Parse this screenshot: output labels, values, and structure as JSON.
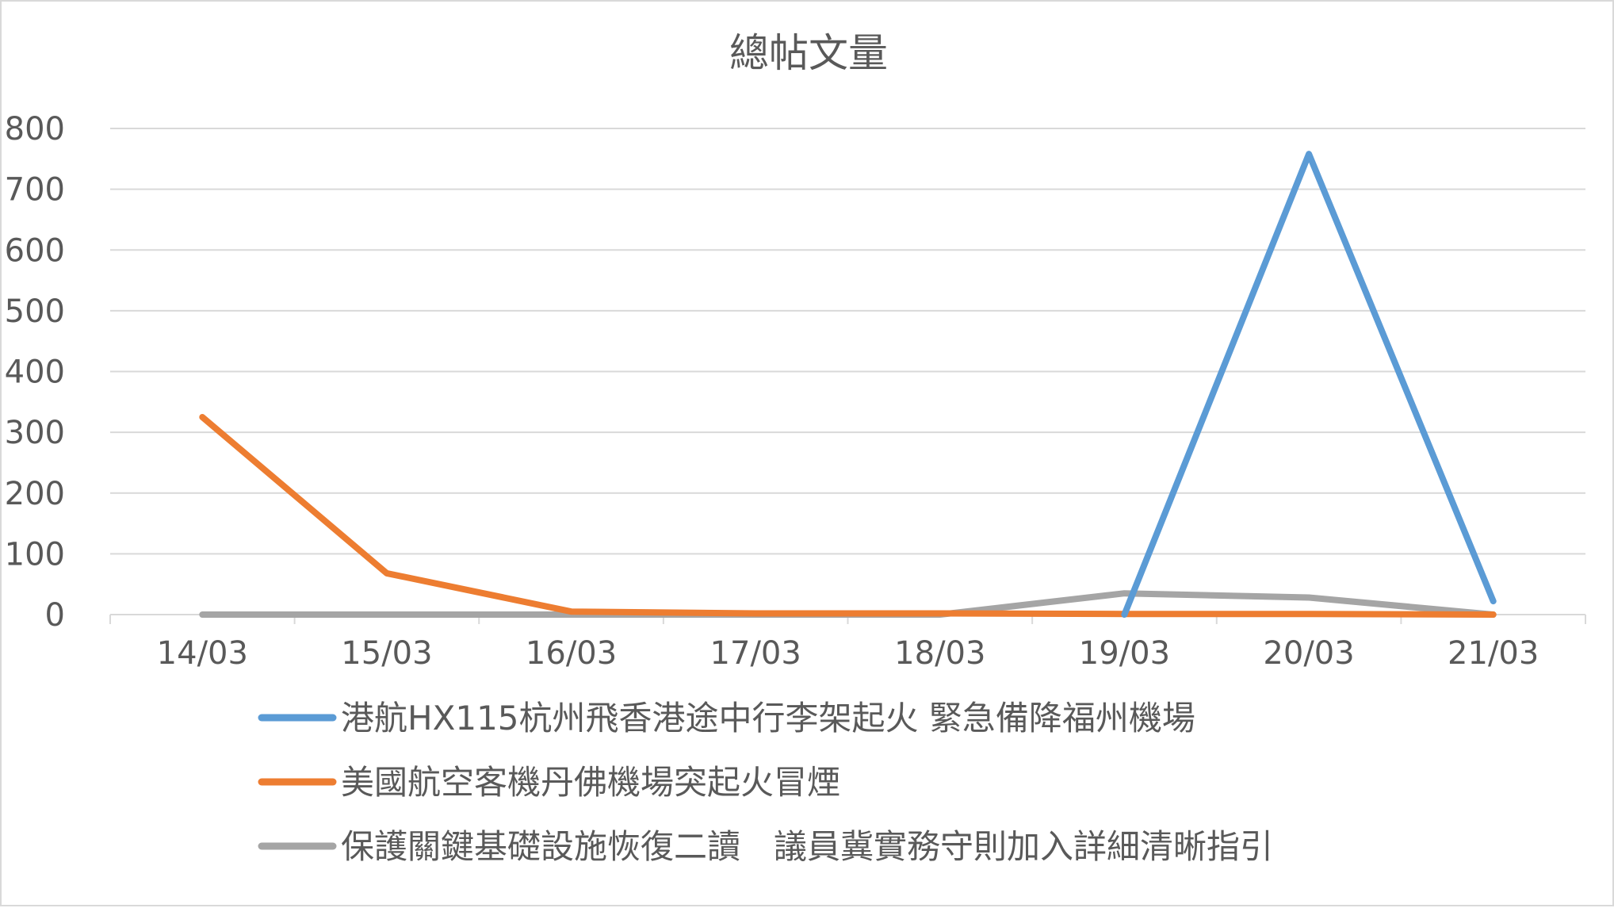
{
  "chart_data": {
    "type": "line",
    "title": "總帖文量",
    "xlabel": "",
    "ylabel": "",
    "categories": [
      "14/03",
      "15/03",
      "16/03",
      "17/03",
      "18/03",
      "19/03",
      "20/03",
      "21/03"
    ],
    "ylim": [
      0,
      800
    ],
    "yticks": [
      0,
      100,
      200,
      300,
      400,
      500,
      600,
      700,
      800
    ],
    "grid": true,
    "legend_position": "bottom",
    "series": [
      {
        "name": "港航HX115杭州飛香港途中行李架起火 緊急備降福州機場",
        "color": "#5b9bd5",
        "values": [
          null,
          null,
          null,
          null,
          null,
          0,
          758,
          22
        ]
      },
      {
        "name": "美國航空客機丹佛機場突起火冒煙",
        "color": "#ed7d31",
        "values": [
          325,
          68,
          5,
          2,
          2,
          1,
          1,
          0
        ]
      },
      {
        "name": "保護關鍵基礎設施恢復二讀　議員冀實務守則加入詳細清晰指引",
        "color": "#a5a5a5",
        "values": [
          0,
          0,
          0,
          0,
          0,
          35,
          28,
          0
        ]
      }
    ]
  }
}
